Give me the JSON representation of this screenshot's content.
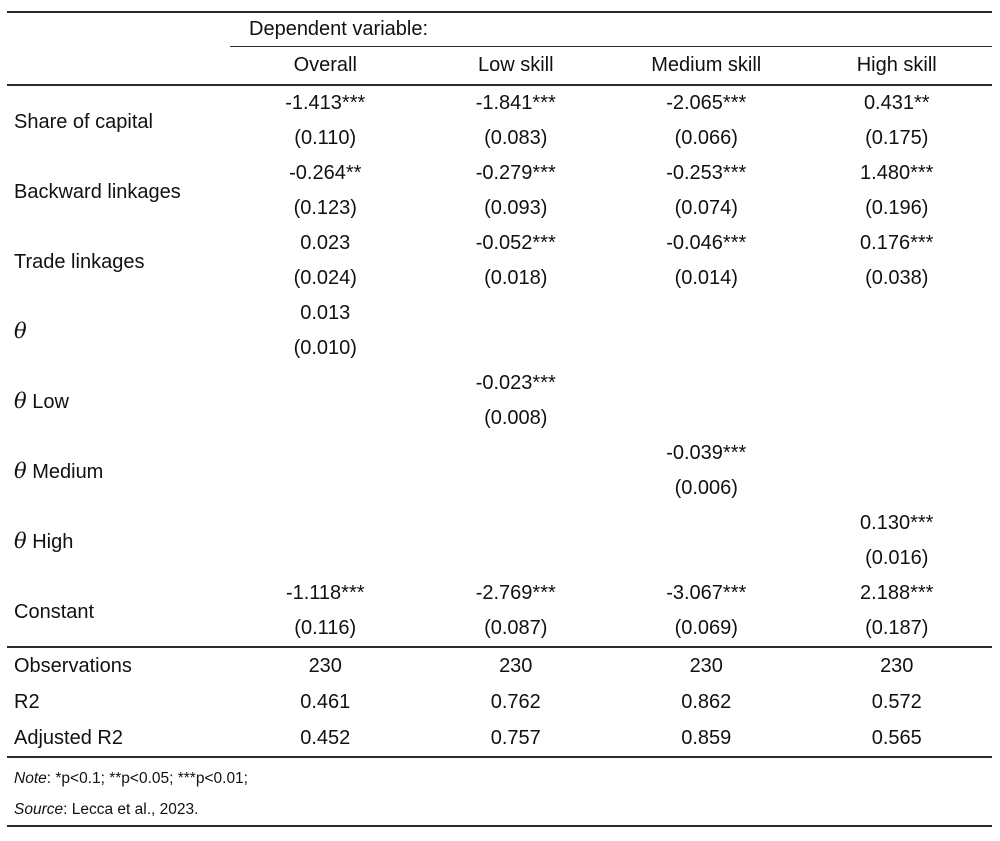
{
  "table": {
    "header": {
      "dependent_variable_label": "Dependent variable:",
      "columns": [
        "Overall",
        "Low skill",
        "Medium skill",
        "High skill"
      ]
    },
    "rows": [
      {
        "label_symbol": "",
        "label_text": "Share of capital",
        "cells": [
          {
            "coef": "-1.413***",
            "se": "(0.110)"
          },
          {
            "coef": "-1.841***",
            "se": "(0.083)"
          },
          {
            "coef": "-2.065***",
            "se": "(0.066)"
          },
          {
            "coef": "0.431**",
            "se": "(0.175)"
          }
        ]
      },
      {
        "label_symbol": "",
        "label_text": "Backward linkages",
        "cells": [
          {
            "coef": "-0.264**",
            "se": "(0.123)"
          },
          {
            "coef": "-0.279***",
            "se": "(0.093)"
          },
          {
            "coef": "-0.253***",
            "se": "(0.074)"
          },
          {
            "coef": "1.480***",
            "se": "(0.196)"
          }
        ]
      },
      {
        "label_symbol": "",
        "label_text": "Trade linkages",
        "cells": [
          {
            "coef": "0.023",
            "se": "(0.024)"
          },
          {
            "coef": "-0.052***",
            "se": "(0.018)"
          },
          {
            "coef": "-0.046***",
            "se": "(0.014)"
          },
          {
            "coef": "0.176***",
            "se": "(0.038)"
          }
        ]
      },
      {
        "label_symbol": "θ",
        "label_text": "",
        "cells": [
          {
            "coef": "0.013",
            "se": "(0.010)"
          },
          {
            "coef": "",
            "se": ""
          },
          {
            "coef": "",
            "se": ""
          },
          {
            "coef": "",
            "se": ""
          }
        ]
      },
      {
        "label_symbol": "θ",
        "label_text": " Low",
        "cells": [
          {
            "coef": "",
            "se": ""
          },
          {
            "coef": "-0.023***",
            "se": "(0.008)"
          },
          {
            "coef": "",
            "se": ""
          },
          {
            "coef": "",
            "se": ""
          }
        ]
      },
      {
        "label_symbol": "θ",
        "label_text": " Medium",
        "cells": [
          {
            "coef": "",
            "se": ""
          },
          {
            "coef": "",
            "se": ""
          },
          {
            "coef": "-0.039***",
            "se": "(0.006)"
          },
          {
            "coef": "",
            "se": ""
          }
        ]
      },
      {
        "label_symbol": "θ",
        "label_text": " High",
        "cells": [
          {
            "coef": "",
            "se": ""
          },
          {
            "coef": "",
            "se": ""
          },
          {
            "coef": "",
            "se": ""
          },
          {
            "coef": "0.130***",
            "se": "(0.016)"
          }
        ]
      },
      {
        "label_symbol": "",
        "label_text": "Constant",
        "cells": [
          {
            "coef": "-1.118***",
            "se": "(0.116)"
          },
          {
            "coef": "-2.769***",
            "se": "(0.087)"
          },
          {
            "coef": "-3.067***",
            "se": "(0.069)"
          },
          {
            "coef": "2.188***",
            "se": "(0.187)"
          }
        ]
      }
    ],
    "stats": [
      {
        "label": "Observations",
        "values": [
          "230",
          "230",
          "230",
          "230"
        ]
      },
      {
        "label": "R2",
        "values": [
          "0.461",
          "0.762",
          "0.862",
          "0.572"
        ]
      },
      {
        "label": "Adjusted R2",
        "values": [
          "0.452",
          "0.757",
          "0.859",
          "0.565"
        ]
      }
    ],
    "notes": {
      "note_label": "Note",
      "note_rest": ": *p<0.1; **p<0.05; ***p<0.01;",
      "source_label": "Source",
      "source_rest": ": Lecca et al., 2023."
    }
  }
}
